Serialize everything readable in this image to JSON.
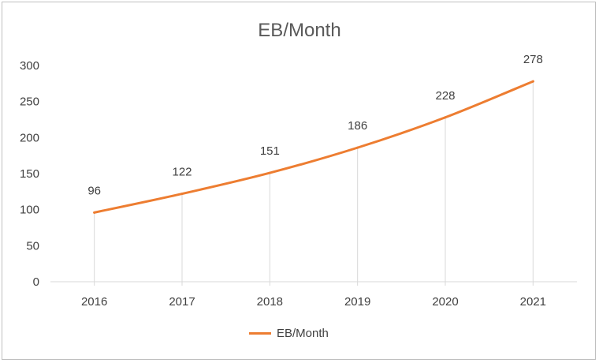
{
  "chart_data": {
    "type": "line",
    "title": "EB/Month",
    "categories": [
      "2016",
      "2017",
      "2018",
      "2019",
      "2020",
      "2021"
    ],
    "series": [
      {
        "name": "EB/Month",
        "values": [
          96,
          122,
          151,
          186,
          228,
          278
        ]
      }
    ],
    "ylim": [
      0,
      300
    ],
    "yticks": [
      "0",
      "50",
      "100",
      "150",
      "200",
      "250",
      "300"
    ],
    "data_labels": [
      "96",
      "122",
      "151",
      "186",
      "228",
      "278"
    ],
    "grid": false,
    "drop_lines": true,
    "legend_position": "bottom",
    "colors": {
      "series": "#ed7d31",
      "axis": "#d9d9d9",
      "drop_line": "#d9d9d9",
      "text": "#404040",
      "title": "#595959"
    }
  }
}
